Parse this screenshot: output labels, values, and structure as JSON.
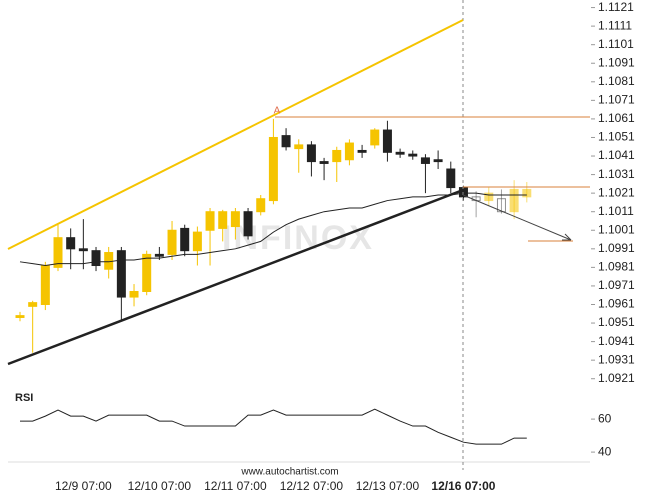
{
  "chart_data": [
    {
      "type": "candlestick",
      "watermark": "INFINOX",
      "source": "www.autochartist.com",
      "annotation": "A",
      "categories": [
        null,
        null,
        null,
        null,
        null,
        "12/9 07:00",
        null,
        null,
        null,
        null,
        null,
        "12/10 07:00",
        null,
        null,
        null,
        null,
        null,
        "12/11 07:00",
        null,
        null,
        null,
        null,
        null,
        "12/12 07:00",
        null,
        null,
        null,
        null,
        null,
        "12/13 07:00",
        null,
        null,
        null,
        null,
        null,
        "12/16 07:00",
        null,
        null,
        null,
        null,
        null
      ],
      "open": [
        1.0954,
        1.096,
        1.0961,
        1.0981,
        1.0997,
        1.0991,
        1.099,
        1.098,
        1.099,
        1.0965,
        1.0968,
        1.0988,
        1.0988,
        1.1002,
        1.099,
        1.1001,
        1.1002,
        1.1003,
        1.1011,
        1.1011,
        1.1017,
        1.1052,
        1.1045,
        1.1047,
        1.1038,
        1.1038,
        1.1039,
        1.1044,
        1.1047,
        1.1055,
        1.1043,
        1.1042,
        1.104,
        1.1039,
        1.1034,
        1.1024,
        1.1019,
        1.1017,
        1.1018,
        1.1011,
        1.1019
      ],
      "high": [
        1.0957,
        1.0963,
        1.0984,
        1.1004,
        1.1002,
        1.1007,
        1.0992,
        1.0992,
        1.0992,
        1.0972,
        1.099,
        1.0992,
        1.1006,
        1.1004,
        1.1003,
        1.1013,
        1.1012,
        1.1013,
        1.1013,
        1.102,
        1.1061,
        1.1056,
        1.105,
        1.1049,
        1.104,
        1.1046,
        1.105,
        1.1047,
        1.1056,
        1.106,
        1.1045,
        1.1044,
        1.1042,
        1.1044,
        1.1038,
        1.1025,
        1.1022,
        1.1024,
        1.1023,
        1.1028,
        1.1027
      ],
      "low": [
        1.0952,
        1.0935,
        1.0958,
        1.0979,
        1.098,
        1.098,
        1.0979,
        1.0975,
        1.0952,
        1.096,
        1.0966,
        1.0985,
        1.0985,
        1.0987,
        1.0982,
        1.0982,
        1.0995,
        1.0996,
        1.0996,
        1.1009,
        1.1015,
        1.1044,
        1.1032,
        1.103,
        1.1028,
        1.1027,
        1.1036,
        1.104,
        1.1045,
        1.1038,
        1.104,
        1.1039,
        1.1021,
        1.1034,
        1.1021,
        1.1017,
        1.1008,
        1.1014,
        1.101,
        1.1007,
        1.1016
      ],
      "close": [
        1.0955,
        1.0962,
        1.0982,
        1.0997,
        1.0991,
        1.099,
        1.0982,
        1.0989,
        1.0965,
        1.0968,
        1.0988,
        1.0987,
        1.1001,
        1.099,
        1.1,
        1.1011,
        1.1011,
        1.1011,
        1.0998,
        1.1018,
        1.1051,
        1.1046,
        1.1047,
        1.1038,
        1.1037,
        1.1044,
        1.1048,
        1.1043,
        1.1055,
        1.1043,
        1.1042,
        1.1041,
        1.1037,
        1.1038,
        1.1024,
        1.1019,
        1.1017,
        1.1021,
        1.1011,
        1.1023,
        1.1023
      ],
      "moving_average": [
        1.0984,
        1.0983,
        1.0982,
        1.0983,
        1.0983,
        1.0983,
        1.0984,
        1.0984,
        1.0985,
        1.0985,
        1.0986,
        1.0986,
        1.0987,
        1.0988,
        1.0988,
        1.0989,
        1.099,
        1.0991,
        1.0993,
        1.0995,
        1.1,
        1.1004,
        1.1007,
        1.1009,
        1.1011,
        1.1012,
        1.1013,
        1.1013,
        1.1015,
        1.1017,
        1.1018,
        1.1019,
        1.1019,
        1.102,
        1.102,
        1.1021,
        1.1021,
        1.102,
        1.102,
        1.102,
        1.102
      ],
      "up_color": "#f5c400",
      "down_color": "#222222",
      "ma_color": "#222222",
      "ylim": [
        1.0916,
        1.1124
      ],
      "yticks": [
        1.0921,
        1.0931,
        1.0941,
        1.0951,
        1.0961,
        1.0971,
        1.0981,
        1.0991,
        1.1001,
        1.1011,
        1.1021,
        1.1031,
        1.1041,
        1.1051,
        1.1061,
        1.1071,
        1.1081,
        1.1091,
        1.1101,
        1.1111,
        1.1121
      ]
    },
    {
      "type": "line",
      "title": "RSI",
      "color": "#222222",
      "values": [
        58.8,
        58.8,
        61.8,
        65.5,
        61.8,
        61.8,
        58.8,
        62.4,
        62.4,
        62.4,
        62.4,
        58.8,
        58.8,
        55.8,
        55.8,
        55.8,
        55.8,
        55.8,
        62.4,
        62.4,
        65.5,
        62.4,
        62.4,
        62.4,
        62.4,
        62.4,
        62.4,
        62.4,
        66.0,
        62.4,
        58.8,
        55.8,
        55.8,
        52.0,
        49.0,
        46.0,
        44.8,
        44.8,
        44.8,
        48.5,
        48.5
      ],
      "ylim": [
        34,
        74
      ],
      "yticks": [
        60,
        40
      ]
    }
  ]
}
